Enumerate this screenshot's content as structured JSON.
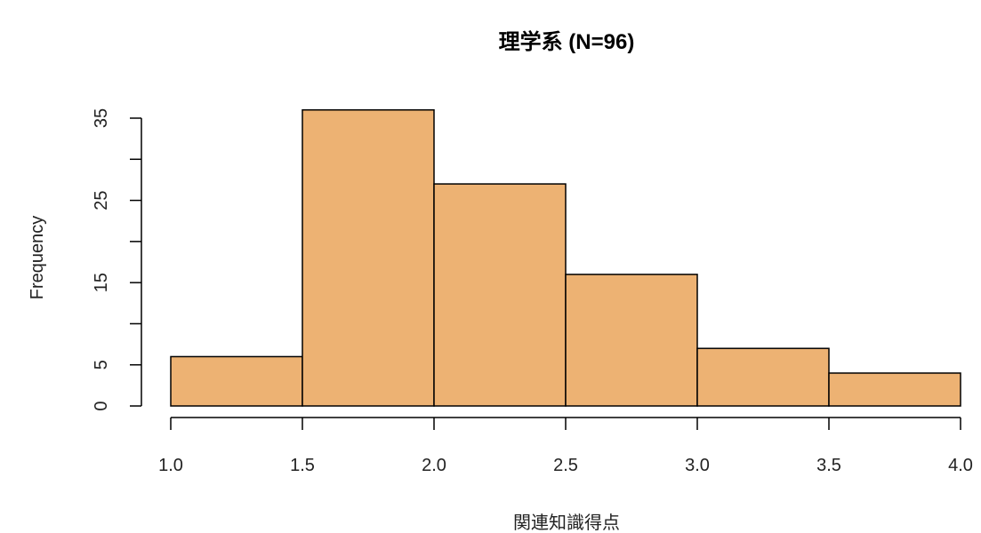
{
  "chart_data": {
    "type": "bar",
    "title": "理学系 (N=96)",
    "xlabel": "関連知識得点",
    "ylabel": "Frequency",
    "bins": [
      {
        "from": 1.0,
        "to": 1.5,
        "value": 6
      },
      {
        "from": 1.5,
        "to": 2.0,
        "value": 36
      },
      {
        "from": 2.0,
        "to": 2.5,
        "value": 27
      },
      {
        "from": 2.5,
        "to": 3.0,
        "value": 16
      },
      {
        "from": 3.0,
        "to": 3.5,
        "value": 7
      },
      {
        "from": 3.5,
        "to": 4.0,
        "value": 4
      }
    ],
    "x_ticks": [
      "1.0",
      "1.5",
      "2.0",
      "2.5",
      "3.0",
      "3.5",
      "4.0"
    ],
    "y_ticks": [
      "0",
      "5",
      "15",
      "25",
      "35"
    ],
    "xlim": [
      1.0,
      4.0
    ],
    "ylim": [
      0,
      35
    ],
    "grid": false,
    "bar_color": "#EDB273"
  }
}
